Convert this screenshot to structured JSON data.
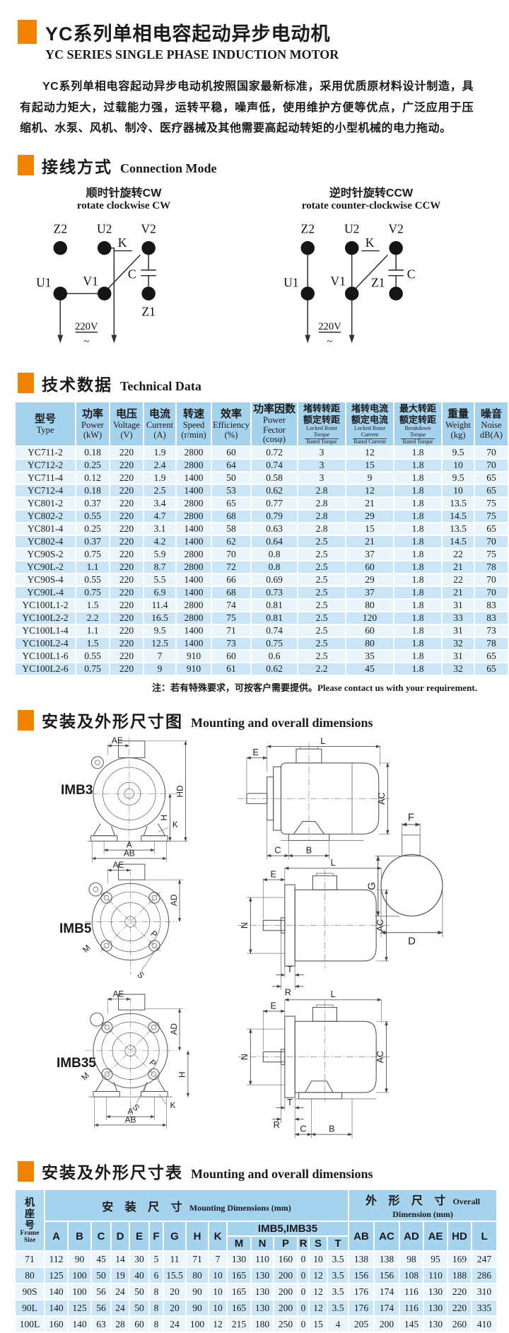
{
  "colors": {
    "accent_orange": "#F28300",
    "table_header_blue": "#A5D2ED",
    "row_light": "#EAF5FC",
    "row_dark": "#C9E5F6",
    "label_col_blue": "#AFD9F1"
  },
  "header": {
    "title_zh": "YC系列单相电容起动异步电动机",
    "title_en": "YC SERIES SINGLE PHASE INDUCTION MOTOR"
  },
  "intro": {
    "text": "YC系列单相电容起动异步电动机按照国家最新标准，采用优质原材料设计制造，具有起动力矩大，过载能力强，运转平稳，噪声低，使用维护方便等优点，广泛应用于压缩机、水泵、风机、制冷、医疗器械及其他需要高起动转矩的小型机械的电力拖动。"
  },
  "sections": {
    "connection": {
      "zh": "接线方式",
      "en": "Connection Mode"
    },
    "technical": {
      "zh": "技术数据",
      "en": "Technical Data"
    },
    "mounting_fig": {
      "zh": "安装及外形尺寸图",
      "en": "Mounting and overall dimensions"
    },
    "mounting_tbl": {
      "zh": "安装及外形尺寸表",
      "en": "Mounting and overall dimensions"
    }
  },
  "connection": {
    "cw": {
      "zh": "顺时针旋转CW",
      "en": "rotate clockwise CW"
    },
    "ccw": {
      "zh": "逆时针旋转CCW",
      "en": "rotate counter-clockwise CCW"
    },
    "t": {
      "z2": "Z2",
      "u2": "U2",
      "v2": "V2",
      "u1": "U1",
      "v1": "V1",
      "z1": "Z1",
      "k": "K",
      "c": "C",
      "v": "220V",
      "tilde": "~"
    }
  },
  "tech": {
    "h": [
      {
        "zh": "型号",
        "en": "Type"
      },
      {
        "zh": "功率",
        "en": "Power",
        "unit": "(kW)"
      },
      {
        "zh": "电压",
        "en": "Voltage",
        "unit": "(V)"
      },
      {
        "zh": "电流",
        "en": "Current",
        "unit": "(A)"
      },
      {
        "zh": "转速",
        "en": "Speed",
        "unit": "(r/min)"
      },
      {
        "zh": "效率",
        "en": "Efficiency",
        "unit": "(%)"
      },
      {
        "zh": "功率因数",
        "en": "Power Fector",
        "unit": "(cosφ)"
      },
      {
        "zh1": "堵转转距",
        "zh2": "额定转距",
        "en1": "Locked Rotor",
        "en2": "Torque",
        "en3": "Rated Torque"
      },
      {
        "zh1": "堵转电流",
        "zh2": "额定电流",
        "en1": "Locked Rotor",
        "en2": "Current",
        "en3": "Rated Current"
      },
      {
        "zh1": "最大转距",
        "zh2": "额定转距",
        "en1": "Breakdown",
        "en2": "Torque",
        "en3": "Rated Torque"
      },
      {
        "zh": "重量",
        "en": "Weight",
        "unit": "(kg)"
      },
      {
        "zh": "噪音",
        "en": "Noise",
        "unit": "dB(A)"
      }
    ],
    "rows": [
      [
        "YC711-2",
        "0.18",
        "220",
        "1.9",
        "2800",
        "60",
        "0.72",
        "3",
        "12",
        "1.8",
        "9.5",
        "70"
      ],
      [
        "YC712-2",
        "0.25",
        "220",
        "2.4",
        "2800",
        "64",
        "0.74",
        "3",
        "15",
        "1.8",
        "10",
        "70"
      ],
      [
        "YC711-4",
        "0.12",
        "220",
        "1.9",
        "1400",
        "50",
        "0.58",
        "3",
        "9",
        "1.8",
        "9.5",
        "65"
      ],
      [
        "YC712-4",
        "0.18",
        "220",
        "2.5",
        "1400",
        "53",
        "0.62",
        "2.8",
        "12",
        "1.8",
        "10",
        "65"
      ],
      [
        "YC801-2",
        "0.37",
        "220",
        "3.4",
        "2800",
        "65",
        "0.77",
        "2.8",
        "21",
        "1.8",
        "13.5",
        "75"
      ],
      [
        "YC802-2",
        "0.55",
        "220",
        "4.7",
        "2800",
        "68",
        "0.79",
        "2.8",
        "29",
        "1.8",
        "14.5",
        "75"
      ],
      [
        "YC801-4",
        "0.25",
        "220",
        "3.1",
        "1400",
        "58",
        "0.63",
        "2.8",
        "15",
        "1.8",
        "13.5",
        "65"
      ],
      [
        "YC802-4",
        "0.37",
        "220",
        "4.2",
        "1400",
        "62",
        "0.64",
        "2.5",
        "21",
        "1.8",
        "14.5",
        "70"
      ],
      [
        "YC90S-2",
        "0.75",
        "220",
        "5.9",
        "2800",
        "70",
        "0.8",
        "2.5",
        "37",
        "1.8",
        "22",
        "75"
      ],
      [
        "YC90L-2",
        "1.1",
        "220",
        "8.7",
        "2800",
        "72",
        "0.8",
        "2.5",
        "60",
        "1.8",
        "21",
        "78"
      ],
      [
        "YC90S-4",
        "0.55",
        "220",
        "5.5",
        "1400",
        "66",
        "0.69",
        "2.5",
        "29",
        "1.8",
        "22",
        "70"
      ],
      [
        "YC90L-4",
        "0.75",
        "220",
        "6.9",
        "1400",
        "68",
        "0.73",
        "2.5",
        "37",
        "1.8",
        "21",
        "70"
      ],
      [
        "YC100L1-2",
        "1.5",
        "220",
        "11.4",
        "2800",
        "74",
        "0.81",
        "2.5",
        "80",
        "1.8",
        "31",
        "83"
      ],
      [
        "YC100L2-2",
        "2.2",
        "220",
        "16.5",
        "2800",
        "75",
        "0.81",
        "2.5",
        "120",
        "1.8",
        "33",
        "83"
      ],
      [
        "YC100L1-4",
        "1.1",
        "220",
        "9.5",
        "1400",
        "71",
        "0.74",
        "2.5",
        "60",
        "1.8",
        "31",
        "73"
      ],
      [
        "YC100L2-4",
        "1.5",
        "220",
        "12.5",
        "1400",
        "73",
        "0.75",
        "2.5",
        "80",
        "1.8",
        "32",
        "78"
      ],
      [
        "YC100L1-6",
        "0.55",
        "220",
        "7",
        "910",
        "60",
        "0.6",
        "2.5",
        "35",
        "1.8",
        "31",
        "65"
      ],
      [
        "YC100L2-6",
        "0.75",
        "220",
        "9",
        "910",
        "61",
        "0.62",
        "2.2",
        "45",
        "1.8",
        "32",
        "65"
      ]
    ]
  },
  "note": {
    "zh": "注：若有特殊要求，可按客户需要提供。",
    "en": "Please contact us with your requirement."
  },
  "drawings": {
    "models": [
      "IMB3",
      "IMB5",
      "IMB35"
    ],
    "dims": {
      "ae": "AE",
      "hd": "HD",
      "h": "H",
      "k": "K",
      "a": "A",
      "ab": "AB",
      "l": "L",
      "e": "E",
      "ac": "AC",
      "c": "C",
      "b": "B",
      "f": "F",
      "g": "G",
      "d": "D",
      "ad": "AD",
      "p": "P",
      "m": "M",
      "s": "S",
      "n": "N",
      "t": "T",
      "r": "R"
    }
  },
  "dim": {
    "frame_zh": "机座号",
    "frame_en": "Frame Size",
    "mount_zh": "安 装 尺 寸",
    "mount_en": "Mounting Dimensions (mm)",
    "overall_zh": "外 形 尺 寸",
    "overall_en": "Overall Dimension (mm)",
    "imb": "IMB5,IMB35",
    "cols1": [
      "A",
      "B",
      "C",
      "D",
      "E",
      "F",
      "G",
      "H",
      "K"
    ],
    "cols2": [
      "M",
      "N",
      "P",
      "R",
      "S",
      "T"
    ],
    "cols3": [
      "AB",
      "AC",
      "AD",
      "AE",
      "HD",
      "L"
    ],
    "rows": [
      [
        "71",
        "112",
        "90",
        "45",
        "14",
        "30",
        "5",
        "11",
        "71",
        "7",
        "130",
        "110",
        "160",
        "0",
        "10",
        "3.5",
        "138",
        "138",
        "98",
        "95",
        "169",
        "247"
      ],
      [
        "80",
        "125",
        "100",
        "50",
        "19",
        "40",
        "6",
        "15.5",
        "80",
        "10",
        "165",
        "130",
        "200",
        "0",
        "12",
        "3.5",
        "156",
        "156",
        "108",
        "110",
        "188",
        "286"
      ],
      [
        "90S",
        "140",
        "100",
        "56",
        "24",
        "50",
        "8",
        "20",
        "90",
        "10",
        "165",
        "130",
        "200",
        "0",
        "12",
        "3.5",
        "176",
        "174",
        "116",
        "130",
        "220",
        "310"
      ],
      [
        "90L",
        "140",
        "125",
        "56",
        "24",
        "50",
        "8",
        "20",
        "90",
        "10",
        "165",
        "130",
        "200",
        "0",
        "12",
        "3.5",
        "176",
        "174",
        "116",
        "130",
        "220",
        "335"
      ],
      [
        "100L",
        "160",
        "140",
        "63",
        "28",
        "60",
        "8",
        "24",
        "100",
        "12",
        "215",
        "180",
        "250",
        "0",
        "15",
        "4",
        "205",
        "200",
        "145",
        "130",
        "260",
        "410"
      ]
    ]
  }
}
